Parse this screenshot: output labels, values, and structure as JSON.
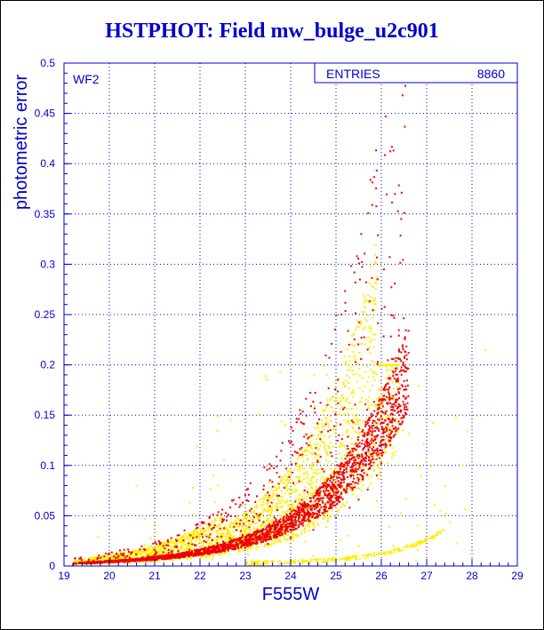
{
  "title": "HSTPHOT: Field mw_bulge_u2c901",
  "colors": {
    "axis": "#0000cc",
    "grid": "#0000cc",
    "yellow": "#ffee00",
    "red": "#ee0000"
  },
  "chart_data": {
    "type": "scatter",
    "title": "HSTPHOT: Field mw_bulge_u2c901",
    "xlabel": "F555W",
    "ylabel": "photometric error",
    "xlim": [
      19,
      29
    ],
    "ylim": [
      0,
      0.5
    ],
    "xticks": [
      "19",
      "20",
      "21",
      "22",
      "23",
      "24",
      "25",
      "26",
      "27",
      "28",
      "29"
    ],
    "yticks": [
      "0",
      "0.05",
      "0.1",
      "0.15",
      "0.2",
      "0.25",
      "0.3",
      "0.35",
      "0.4",
      "0.45",
      "0.5"
    ],
    "grid": true,
    "panel_label": "WF2",
    "stats": {
      "label": "ENTRIES",
      "value": "8860"
    },
    "series": [
      {
        "color": "#ffee00",
        "description_points": [
          [
            19.2,
            0.002
          ],
          [
            19.5,
            0.004
          ],
          [
            20.0,
            0.006
          ],
          [
            20.5,
            0.009
          ],
          [
            21.0,
            0.013
          ],
          [
            21.5,
            0.018
          ],
          [
            22.0,
            0.024
          ],
          [
            22.5,
            0.03
          ],
          [
            23.0,
            0.036
          ],
          [
            23.5,
            0.045
          ],
          [
            24.0,
            0.055
          ],
          [
            24.5,
            0.07
          ],
          [
            25.0,
            0.09
          ],
          [
            25.3,
            0.11
          ],
          [
            25.6,
            0.13
          ],
          [
            25.9,
            0.16
          ],
          [
            26.2,
            0.2
          ],
          [
            23.5,
            0.005
          ],
          [
            24.5,
            0.01
          ],
          [
            25.5,
            0.02
          ],
          [
            26.0,
            0.027
          ],
          [
            26.8,
            0.04
          ],
          [
            27.3,
            0.055
          ],
          [
            27.8,
            0.1
          ],
          [
            28.3,
            0.215
          ],
          [
            22.3,
            0.09
          ],
          [
            20.6,
            0.08
          ],
          [
            24.8,
            0.19
          ]
        ]
      },
      {
        "color": "#ee0000",
        "description_points": [
          [
            19.2,
            0.001
          ],
          [
            19.5,
            0.002
          ],
          [
            20.0,
            0.004
          ],
          [
            20.5,
            0.006
          ],
          [
            21.0,
            0.008
          ],
          [
            21.5,
            0.01
          ],
          [
            22.0,
            0.012
          ],
          [
            22.5,
            0.015
          ],
          [
            23.0,
            0.018
          ],
          [
            23.5,
            0.022
          ],
          [
            24.0,
            0.028
          ],
          [
            24.5,
            0.036
          ],
          [
            25.0,
            0.048
          ],
          [
            25.3,
            0.058
          ],
          [
            25.5,
            0.066
          ],
          [
            25.7,
            0.076
          ],
          [
            25.9,
            0.09
          ],
          [
            26.0,
            0.102
          ],
          [
            26.2,
            0.12
          ],
          [
            26.4,
            0.15
          ],
          [
            26.5,
            0.175
          ],
          [
            26.6,
            0.212
          ]
        ]
      }
    ]
  }
}
